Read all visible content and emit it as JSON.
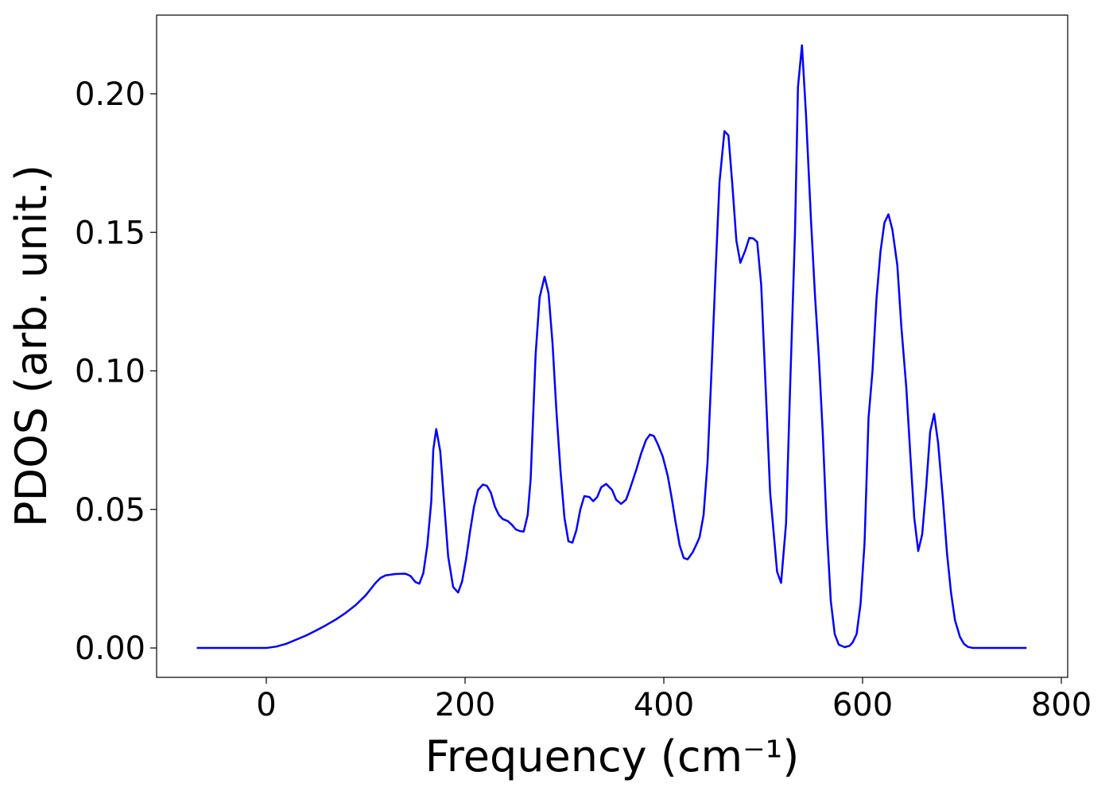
{
  "chart_data": {
    "type": "line",
    "xlabel": "Frequency (cm⁻¹)",
    "ylabel": "PDOS (arb. unit.)",
    "color": "#0000ff",
    "x": [
      -70,
      0,
      10,
      20,
      30,
      40,
      50,
      60,
      70,
      80,
      90,
      100,
      110,
      115,
      120,
      130,
      140,
      145,
      150,
      154,
      158,
      162,
      166,
      168,
      171,
      175,
      179,
      183,
      188,
      193,
      197,
      201,
      205,
      209,
      213,
      218,
      222,
      226,
      230,
      234,
      238,
      243,
      247,
      251,
      255,
      259,
      263,
      266,
      271,
      275,
      280,
      284,
      288,
      292,
      296,
      300,
      304,
      308,
      312,
      316,
      320,
      325,
      329,
      333,
      337,
      342,
      348,
      352,
      357,
      362,
      366,
      372,
      377,
      382,
      386,
      390,
      394,
      399,
      404,
      408,
      412,
      416,
      420,
      424,
      429,
      433,
      436,
      440,
      444,
      448,
      452,
      456,
      461,
      465,
      469,
      473,
      477,
      482,
      486,
      490,
      494,
      498,
      502,
      507,
      514,
      518,
      523,
      527,
      532,
      535,
      539,
      543,
      548,
      552,
      556,
      560,
      564,
      568,
      572,
      576,
      582,
      587,
      590,
      594,
      598,
      602,
      606,
      610,
      614,
      618,
      622,
      626,
      630,
      635,
      639,
      644,
      648,
      652,
      656,
      660,
      664,
      668,
      672,
      676,
      681,
      685,
      689,
      693,
      698,
      702,
      706,
      711,
      765
    ],
    "values": [
      0,
      0,
      0.0005,
      0.0015,
      0.003,
      0.0045,
      0.0063,
      0.0082,
      0.0103,
      0.0127,
      0.0155,
      0.019,
      0.0235,
      0.0253,
      0.0262,
      0.0267,
      0.0268,
      0.026,
      0.0238,
      0.0232,
      0.027,
      0.037,
      0.053,
      0.0715,
      0.079,
      0.071,
      0.052,
      0.033,
      0.022,
      0.02,
      0.024,
      0.032,
      0.042,
      0.051,
      0.057,
      0.059,
      0.0585,
      0.056,
      0.051,
      0.048,
      0.0465,
      0.0458,
      0.0445,
      0.0428,
      0.0422,
      0.042,
      0.048,
      0.061,
      0.106,
      0.1265,
      0.134,
      0.128,
      0.11,
      0.085,
      0.064,
      0.047,
      0.0385,
      0.038,
      0.0425,
      0.05,
      0.0548,
      0.0545,
      0.053,
      0.0545,
      0.058,
      0.0592,
      0.057,
      0.0535,
      0.052,
      0.0535,
      0.0575,
      0.064,
      0.07,
      0.075,
      0.077,
      0.0765,
      0.0735,
      0.069,
      0.062,
      0.054,
      0.045,
      0.037,
      0.0325,
      0.032,
      0.0345,
      0.0375,
      0.04,
      0.048,
      0.067,
      0.1,
      0.135,
      0.168,
      0.1865,
      0.185,
      0.167,
      0.147,
      0.139,
      0.1435,
      0.148,
      0.1478,
      0.1465,
      0.131,
      0.098,
      0.056,
      0.0275,
      0.0235,
      0.045,
      0.093,
      0.15,
      0.2025,
      0.2175,
      0.193,
      0.155,
      0.128,
      0.105,
      0.077,
      0.043,
      0.017,
      0.005,
      0.0012,
      0.0003,
      0.0008,
      0.002,
      0.005,
      0.016,
      0.038,
      0.083,
      0.1,
      0.126,
      0.143,
      0.1535,
      0.1565,
      0.151,
      0.138,
      0.116,
      0.094,
      0.07,
      0.047,
      0.035,
      0.041,
      0.058,
      0.078,
      0.0845,
      0.074,
      0.053,
      0.034,
      0.02,
      0.01,
      0.004,
      0.0015,
      0.0004,
      0,
      0
    ],
    "xlim": [
      -110.4,
      806.4
    ],
    "xticks": [
      0,
      200,
      400,
      600,
      800
    ],
    "ylim": [
      -0.0106,
      0.2284
    ],
    "yticks": [
      {
        "value": 0,
        "label": "0.00"
      },
      {
        "value": 0.05,
        "label": "0.05"
      },
      {
        "value": 0.1,
        "label": "0.10"
      },
      {
        "value": 0.15,
        "label": "0.15"
      },
      {
        "value": 0.2,
        "label": "0.20"
      }
    ],
    "grid": false
  }
}
